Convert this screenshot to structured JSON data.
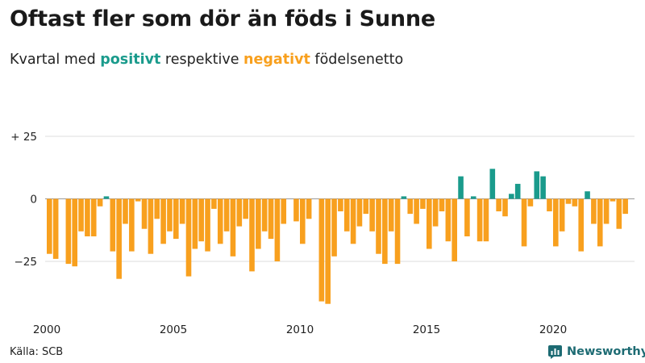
{
  "header": {
    "title": "Oftast fler som dör än föds i Sunne",
    "subtitle_prefix": "Kvartal med ",
    "subtitle_positive": "positivt",
    "subtitle_middle": " respektive ",
    "subtitle_negative": "negativt",
    "subtitle_suffix": " födelsenetto"
  },
  "footer": {
    "source": "Källa: SCB",
    "brand": "Newsworthy"
  },
  "colors": {
    "positive": "#1a9b8c",
    "negative": "#f8a01e",
    "brand": "#1d6b73"
  },
  "chart_data": {
    "type": "bar",
    "title": "Oftast fler som dör än föds i Sunne",
    "subtitle": "Kvartal med positivt respektive negativt födelsenetto",
    "xlabel": "",
    "ylabel": "",
    "ylim": [
      -42,
      27
    ],
    "y_ticks": [
      25,
      0,
      -25
    ],
    "y_tick_labels": [
      "+ 25",
      "0",
      "−25"
    ],
    "x_ticks": [
      2000,
      2005,
      2010,
      2015,
      2020
    ],
    "x_tick_labels": [
      "2000",
      "2005",
      "2010",
      "2015",
      "2020"
    ],
    "start_year": 2000,
    "grid": true,
    "legend": "none",
    "series": [
      {
        "values": [
          -22,
          -24,
          0,
          -26,
          -27,
          -13,
          -15,
          -15,
          -3,
          1,
          -21,
          -32,
          -10,
          -21,
          -1,
          -12,
          -22,
          -8,
          -18,
          -13,
          -16,
          -10,
          -31,
          -20,
          -17,
          -21,
          -4,
          -18,
          -13,
          -23,
          -11,
          -8,
          -29,
          -20,
          -13,
          -16,
          -25,
          -10,
          0,
          -9,
          -18,
          -8,
          0,
          -41,
          -42,
          -23,
          -5,
          -13,
          -18,
          -11,
          -6,
          -13,
          -22,
          -26,
          -13,
          -26,
          1,
          -6,
          -10,
          -4,
          -20,
          -11,
          -5,
          -17,
          -25,
          9,
          -15,
          1,
          -17,
          -17,
          12,
          -5,
          -7,
          2,
          6,
          -19,
          -3,
          11,
          9,
          -5,
          -19,
          -13,
          -2,
          -3,
          -21,
          3,
          -10,
          -19,
          -10,
          -1,
          -12,
          -6
        ]
      }
    ]
  }
}
